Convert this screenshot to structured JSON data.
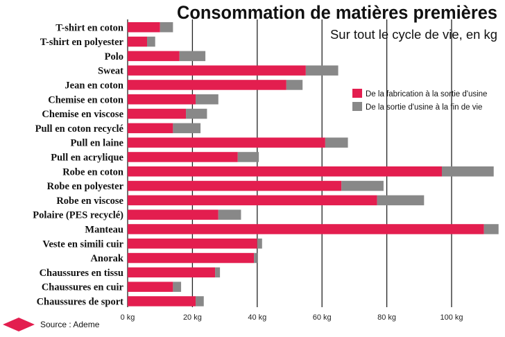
{
  "chart_data": {
    "type": "bar",
    "orientation": "horizontal",
    "stacked": true,
    "title": "Consommation de matières premières",
    "subtitle": "Sur tout le cycle de vie, en kg",
    "categories": [
      "T-shirt en coton",
      "T-shirt en polyester",
      "Polo",
      "Sweat",
      "Jean en coton",
      "Chemise en coton",
      "Chemise en viscose",
      "Pull en coton recyclé",
      "Pull en laine",
      "Pull en acrylique",
      "Robe en coton",
      "Robe en polyester",
      "Robe en viscose",
      "Polaire (PES recyclé)",
      "Manteau",
      "Veste en simili cuir",
      "Anorak",
      "Chaussures en tissu",
      "Chaussures en cuir",
      "Chaussures de sport"
    ],
    "series": [
      {
        "name": "De la fabrication à la sortie d'usine",
        "color": "#e31e4f",
        "values": [
          10,
          6,
          16,
          55,
          49,
          21,
          18,
          14,
          61,
          34,
          97,
          66,
          77,
          28,
          110,
          40,
          39,
          27,
          14,
          21
        ]
      },
      {
        "name": "De la sortie d'usine à la fin de vie",
        "color": "#888888",
        "values": [
          4,
          2.5,
          8,
          10,
          5,
          7,
          6.5,
          8.5,
          7,
          6.5,
          16,
          13,
          14.5,
          7,
          4.5,
          1.5,
          1,
          1.5,
          2.5,
          2.5
        ]
      }
    ],
    "xlim": [
      0,
      115
    ],
    "xticks": [
      {
        "value": 0,
        "label": "0 kg"
      },
      {
        "value": 20,
        "label": "20 kg"
      },
      {
        "value": 40,
        "label": "40 kg"
      },
      {
        "value": 60,
        "label": "60 kg"
      },
      {
        "value": 80,
        "label": "80 kg"
      },
      {
        "value": 100,
        "label": "100 kg"
      }
    ],
    "grid": "vertical",
    "legend_position": "right",
    "source": "Source : Ademe"
  }
}
